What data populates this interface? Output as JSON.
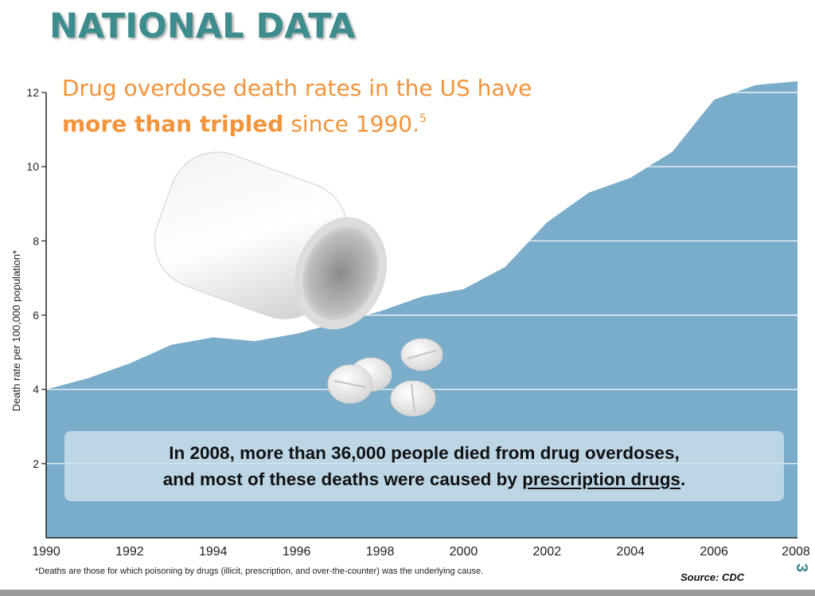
{
  "page": {
    "title": "NATIONAL DATA",
    "headline": {
      "line1": "Drug overdose death rates in the US have",
      "emphasis": "more than tripled",
      "rest": " since 1990.",
      "superscript": "5"
    },
    "callout": {
      "line1": "In 2008, more than 36,000 people died from drug overdoses,",
      "line2_prefix": "and most of these deaths were caused by ",
      "line2_link": "prescription drugs",
      "line2_suffix": "."
    },
    "footnote": "*Deaths are those for which poisoning by drugs (illicit, prescription, and over-the-counter) was the underlying cause.",
    "source": "Source: CDC",
    "page_number": "3"
  },
  "colors": {
    "area_fill": "#7aadca",
    "title": "#3d8c8e",
    "headline": "#f3933a",
    "gridline": "#ffffff"
  },
  "chart_data": {
    "type": "area",
    "ylabel": "Death rate per 100,000 population*",
    "xlabel": "",
    "xlim": [
      1990,
      2008
    ],
    "ylim": [
      0,
      12
    ],
    "x_ticks": [
      1990,
      1992,
      1994,
      1996,
      1998,
      2000,
      2002,
      2004,
      2006,
      2008
    ],
    "y_ticks": [
      2,
      4,
      6,
      8,
      10,
      12
    ],
    "grid": true,
    "series": [
      {
        "x": [
          1990,
          1991,
          1992,
          1993,
          1994,
          1995,
          1996,
          1997,
          1998,
          1999,
          2000,
          2001,
          2002,
          2003,
          2004,
          2005,
          2006,
          2007,
          2008
        ],
        "values": [
          4.0,
          4.3,
          4.7,
          5.2,
          5.4,
          5.3,
          5.5,
          5.8,
          6.1,
          6.5,
          6.7,
          7.3,
          8.5,
          9.3,
          9.7,
          10.4,
          11.8,
          12.2,
          12.3
        ]
      }
    ]
  }
}
